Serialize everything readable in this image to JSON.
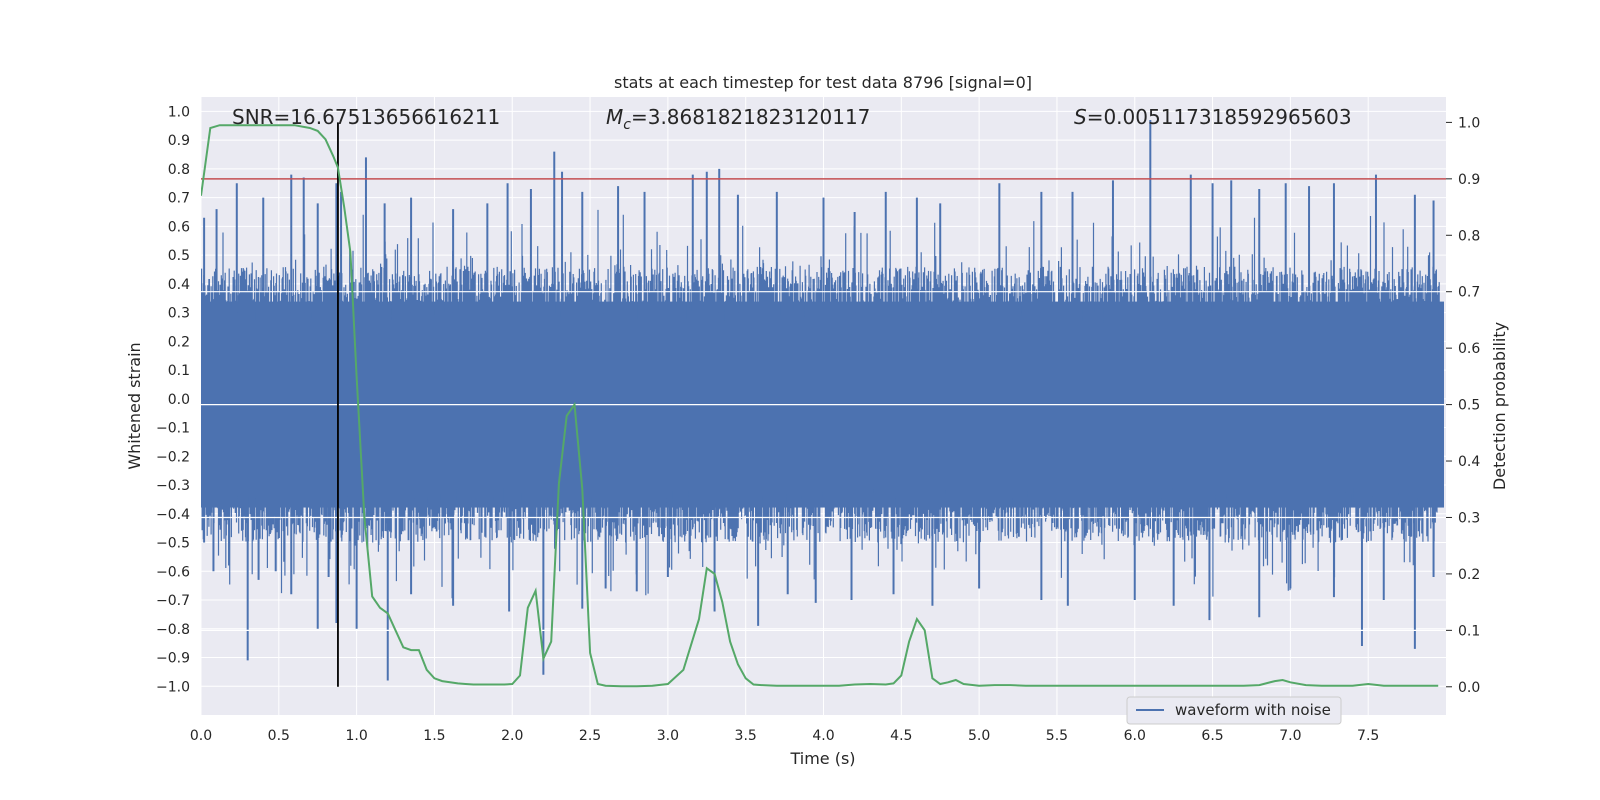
{
  "chart_data": {
    "type": "line",
    "title": "stats at each timestep for test data 8796 [signal=0]",
    "xlabel": "Time (s)",
    "ylabel_left": "Whitened strain",
    "ylabel_right": "Detection probability",
    "xlim": [
      0.0,
      8.0
    ],
    "ylim_left": [
      -1.1,
      1.05
    ],
    "ylim_right": [
      -0.05,
      1.045
    ],
    "x_ticks": [
      "0.0",
      "0.5",
      "1.0",
      "1.5",
      "2.0",
      "2.5",
      "3.0",
      "3.5",
      "4.0",
      "4.5",
      "5.0",
      "5.5",
      "6.0",
      "6.5",
      "7.0",
      "7.5"
    ],
    "y_left_ticks": [
      "1.0",
      "0.9",
      "0.8",
      "0.7",
      "0.6",
      "0.5",
      "0.4",
      "0.3",
      "0.2",
      "0.1",
      "0.0",
      "−0.1",
      "−0.2",
      "−0.3",
      "−0.4",
      "−0.5",
      "−0.6",
      "−0.7",
      "−0.8",
      "−0.9",
      "−1.0"
    ],
    "y_right_ticks": [
      "0.0",
      "0.1",
      "0.2",
      "0.3",
      "0.4",
      "0.5",
      "0.6",
      "0.7",
      "0.8",
      "0.9",
      "1.0"
    ],
    "grid": true,
    "legend_position": "lower-right",
    "annotations": {
      "snr": "SNR=16.67513656616211",
      "mc_prefix": "M",
      "mc_sub": "c",
      "mc_value": "=3.8681821823120117",
      "s_prefix": "S",
      "s_value": "=0.005117318592965603"
    },
    "threshold": 0.9,
    "marker_time": 0.88,
    "series": [
      {
        "name": "waveform with noise",
        "axis": "left",
        "color": "#4c72b0",
        "band": {
          "typical_low": -0.42,
          "typical_high": 0.38,
          "peaks_up": [
            [
              0.02,
              0.63
            ],
            [
              0.1,
              0.66
            ],
            [
              0.23,
              0.75
            ],
            [
              0.4,
              0.7
            ],
            [
              0.58,
              0.78
            ],
            [
              0.66,
              0.77
            ],
            [
              0.75,
              0.68
            ],
            [
              0.87,
              0.75
            ],
            [
              0.9,
              0.72
            ],
            [
              1.06,
              0.84
            ],
            [
              1.18,
              0.68
            ],
            [
              1.35,
              0.7
            ],
            [
              1.62,
              0.66
            ],
            [
              1.84,
              0.68
            ],
            [
              1.97,
              0.75
            ],
            [
              2.12,
              0.73
            ],
            [
              2.27,
              0.86
            ],
            [
              2.32,
              0.79
            ],
            [
              2.45,
              0.72
            ],
            [
              2.68,
              0.74
            ],
            [
              2.85,
              0.72
            ],
            [
              3.16,
              0.78
            ],
            [
              3.25,
              0.79
            ],
            [
              3.33,
              0.8
            ],
            [
              3.45,
              0.71
            ],
            [
              3.7,
              0.72
            ],
            [
              4.0,
              0.7
            ],
            [
              4.2,
              0.65
            ],
            [
              4.4,
              0.72
            ],
            [
              4.6,
              0.7
            ],
            [
              4.75,
              0.68
            ],
            [
              5.13,
              0.75
            ],
            [
              5.4,
              0.72
            ],
            [
              5.6,
              0.72
            ],
            [
              5.86,
              0.76
            ],
            [
              6.1,
              0.97
            ],
            [
              6.36,
              0.78
            ],
            [
              6.5,
              0.75
            ],
            [
              6.62,
              0.76
            ],
            [
              6.8,
              0.73
            ],
            [
              6.97,
              0.75
            ],
            [
              7.12,
              0.74
            ],
            [
              7.28,
              0.75
            ],
            [
              7.55,
              0.78
            ],
            [
              7.8,
              0.71
            ],
            [
              7.92,
              0.69
            ]
          ],
          "peaks_down": [
            [
              0.02,
              -0.5
            ],
            [
              0.08,
              -0.6
            ],
            [
              0.18,
              -0.58
            ],
            [
              0.3,
              -0.91
            ],
            [
              0.37,
              -0.63
            ],
            [
              0.48,
              -0.6
            ],
            [
              0.58,
              -0.68
            ],
            [
              0.75,
              -0.8
            ],
            [
              0.82,
              -0.62
            ],
            [
              0.87,
              -0.78
            ],
            [
              1.0,
              -0.8
            ],
            [
              1.2,
              -0.98
            ],
            [
              1.35,
              -0.68
            ],
            [
              1.62,
              -0.72
            ],
            [
              1.98,
              -0.74
            ],
            [
              2.2,
              -0.96
            ],
            [
              2.45,
              -0.73
            ],
            [
              2.6,
              -0.66
            ],
            [
              2.8,
              -0.67
            ],
            [
              3.0,
              -0.62
            ],
            [
              3.3,
              -0.74
            ],
            [
              3.58,
              -0.79
            ],
            [
              3.77,
              -0.68
            ],
            [
              3.95,
              -0.71
            ],
            [
              4.18,
              -0.7
            ],
            [
              4.45,
              -0.68
            ],
            [
              4.7,
              -0.72
            ],
            [
              5.0,
              -0.66
            ],
            [
              5.4,
              -0.7
            ],
            [
              5.57,
              -0.72
            ],
            [
              6.0,
              -0.7
            ],
            [
              6.25,
              -0.72
            ],
            [
              6.48,
              -0.77
            ],
            [
              6.8,
              -0.76
            ],
            [
              7.0,
              -0.66
            ],
            [
              7.28,
              -0.69
            ],
            [
              7.46,
              -0.86
            ],
            [
              7.6,
              -0.7
            ],
            [
              7.8,
              -0.87
            ],
            [
              7.92,
              -0.62
            ]
          ]
        }
      },
      {
        "name": "detection probability",
        "axis": "right",
        "color": "#55a868",
        "x": [
          0.0,
          0.06,
          0.12,
          0.2,
          0.3,
          0.4,
          0.5,
          0.6,
          0.7,
          0.75,
          0.8,
          0.85,
          0.88,
          0.92,
          0.96,
          1.0,
          1.05,
          1.1,
          1.15,
          1.2,
          1.25,
          1.3,
          1.35,
          1.4,
          1.45,
          1.5,
          1.55,
          1.6,
          1.65,
          1.7,
          1.75,
          1.8,
          1.85,
          1.9,
          1.95,
          2.0,
          2.05,
          2.1,
          2.15,
          2.2,
          2.25,
          2.3,
          2.35,
          2.4,
          2.45,
          2.5,
          2.55,
          2.6,
          2.7,
          2.8,
          2.9,
          3.0,
          3.1,
          3.2,
          3.25,
          3.3,
          3.35,
          3.4,
          3.45,
          3.5,
          3.55,
          3.6,
          3.7,
          3.8,
          3.9,
          4.0,
          4.1,
          4.2,
          4.3,
          4.4,
          4.45,
          4.5,
          4.55,
          4.6,
          4.65,
          4.7,
          4.75,
          4.8,
          4.85,
          4.9,
          5.0,
          5.1,
          5.2,
          5.3,
          5.5,
          5.7,
          5.9,
          6.1,
          6.3,
          6.5,
          6.7,
          6.8,
          6.9,
          6.95,
          7.0,
          7.1,
          7.2,
          7.3,
          7.4,
          7.5,
          7.6,
          7.7,
          7.8,
          7.95
        ],
        "values": [
          0.87,
          0.99,
          0.995,
          0.995,
          0.995,
          0.995,
          0.995,
          0.995,
          0.99,
          0.985,
          0.97,
          0.94,
          0.92,
          0.85,
          0.77,
          0.55,
          0.3,
          0.16,
          0.14,
          0.13,
          0.1,
          0.07,
          0.065,
          0.065,
          0.03,
          0.015,
          0.01,
          0.008,
          0.006,
          0.005,
          0.004,
          0.004,
          0.004,
          0.004,
          0.004,
          0.005,
          0.02,
          0.14,
          0.17,
          0.05,
          0.08,
          0.36,
          0.48,
          0.5,
          0.35,
          0.06,
          0.005,
          0.002,
          0.001,
          0.001,
          0.002,
          0.005,
          0.03,
          0.12,
          0.21,
          0.2,
          0.15,
          0.08,
          0.04,
          0.015,
          0.004,
          0.003,
          0.002,
          0.002,
          0.002,
          0.002,
          0.002,
          0.004,
          0.005,
          0.004,
          0.006,
          0.02,
          0.08,
          0.12,
          0.1,
          0.015,
          0.005,
          0.008,
          0.012,
          0.005,
          0.002,
          0.003,
          0.003,
          0.002,
          0.002,
          0.002,
          0.002,
          0.002,
          0.002,
          0.002,
          0.002,
          0.003,
          0.01,
          0.012,
          0.008,
          0.003,
          0.002,
          0.002,
          0.002,
          0.005,
          0.002,
          0.002,
          0.002,
          0.002
        ]
      }
    ]
  }
}
